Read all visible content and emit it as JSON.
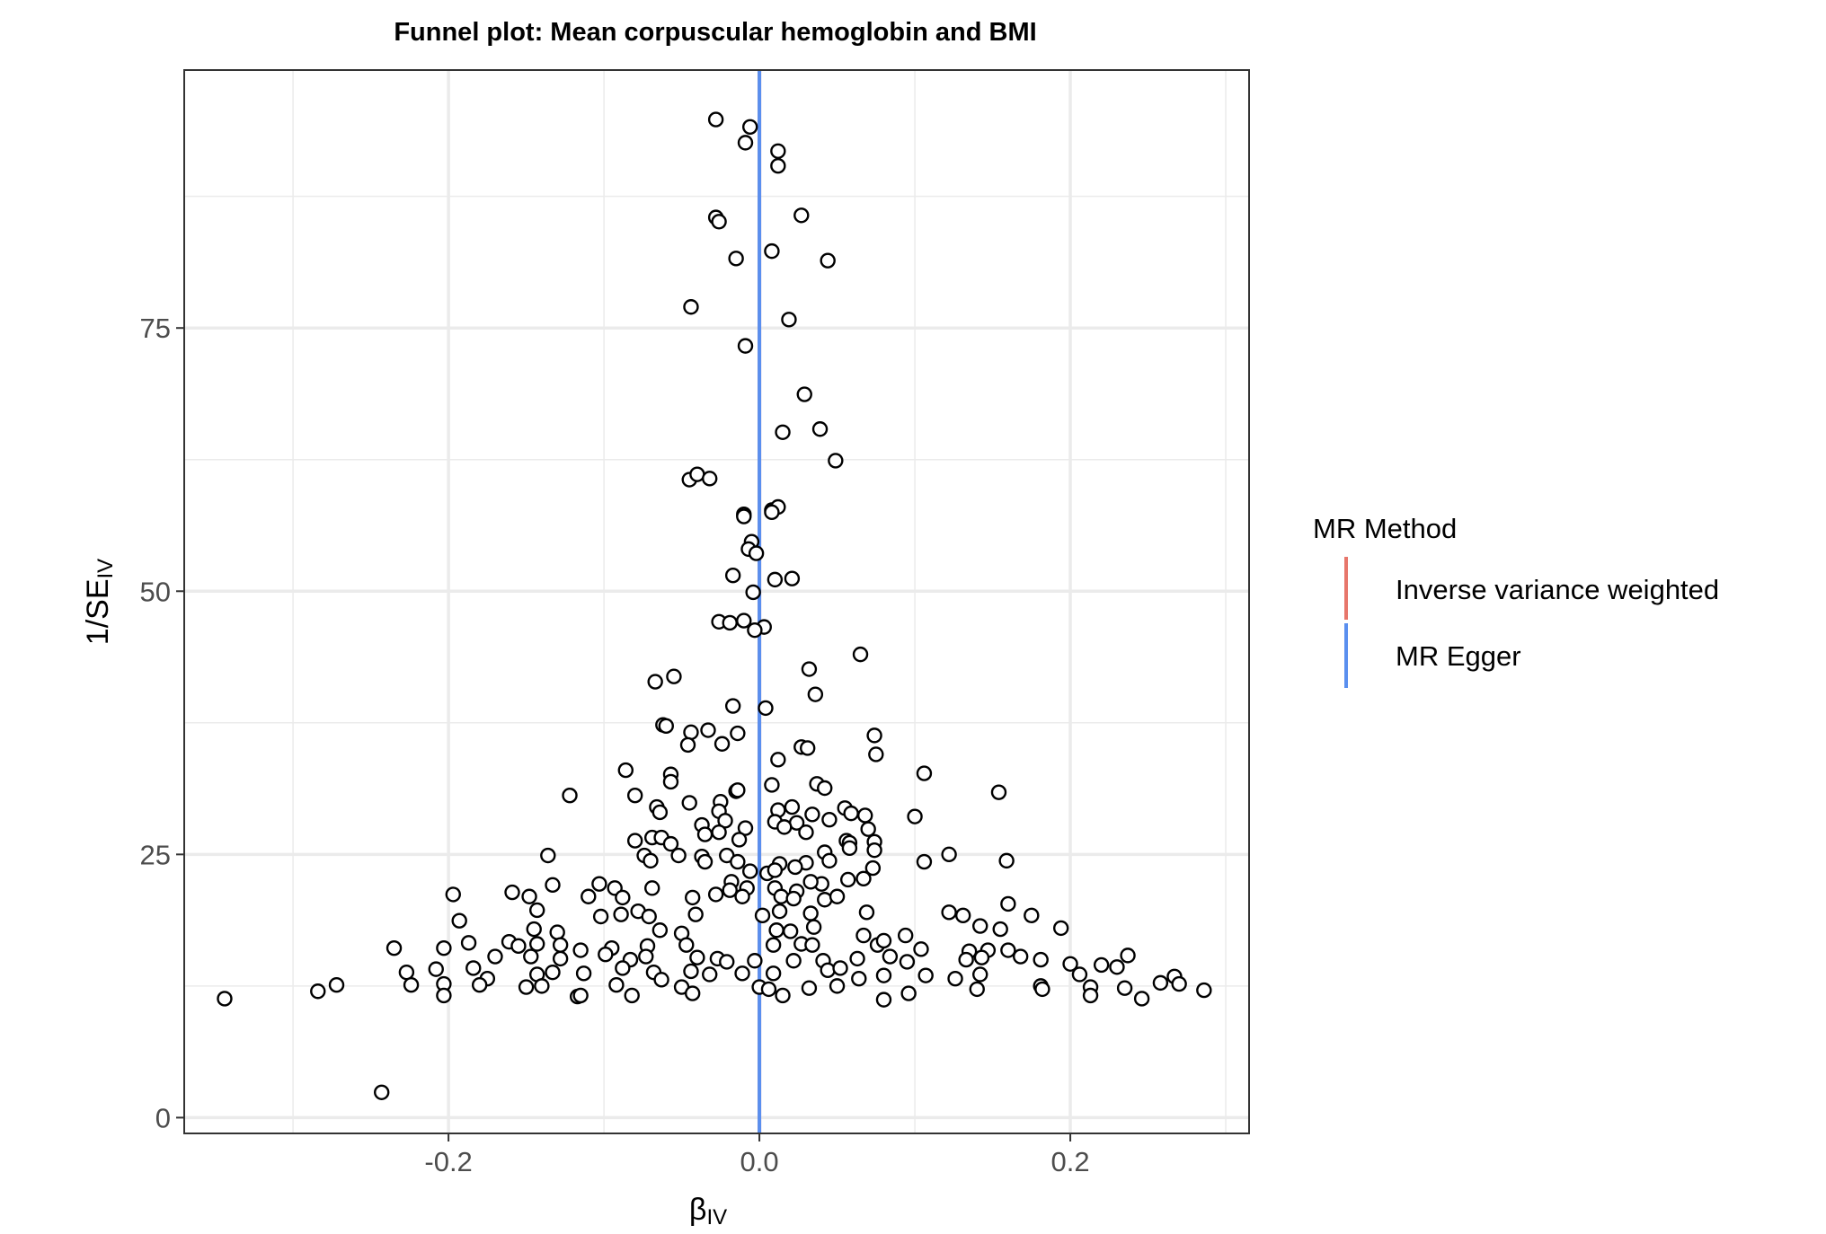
{
  "chart_data": {
    "type": "scatter",
    "title": "Funnel plot: Mean corpuscular hemoglobin and BMI",
    "xlabel": {
      "main": "β",
      "sub": "IV"
    },
    "ylabel": {
      "main": "1/SE",
      "sub": "IV"
    },
    "xlim": [
      -0.37,
      0.315
    ],
    "ylim": [
      -1.5,
      99.5
    ],
    "x_ticks": [
      -0.2,
      0.0,
      0.2
    ],
    "x_tick_labels": [
      "-0.2",
      "0.0",
      "0.2"
    ],
    "y_ticks": [
      0,
      25,
      50,
      75
    ],
    "y_tick_labels": [
      "0",
      "25",
      "50",
      "75"
    ],
    "grid": true,
    "legend_position": "right",
    "legend": {
      "title": "MR Method",
      "entries": [
        {
          "label": "Inverse variance weighted",
          "color": "#e7766b"
        },
        {
          "label": "MR Egger",
          "color": "#5a8fef"
        }
      ]
    },
    "lines": [
      {
        "method": "Inverse variance weighted",
        "x": 0.0,
        "color": "#e7766b"
      },
      {
        "method": "MR Egger",
        "x": 0.0,
        "color": "#5a8fef"
      }
    ],
    "points": [
      [
        -0.028,
        94.8
      ],
      [
        -0.006,
        94.1
      ],
      [
        -0.009,
        92.6
      ],
      [
        0.012,
        91.8
      ],
      [
        0.012,
        90.4
      ],
      [
        -0.028,
        85.5
      ],
      [
        -0.026,
        85.1
      ],
      [
        0.027,
        85.7
      ],
      [
        -0.015,
        81.6
      ],
      [
        0.008,
        82.3
      ],
      [
        0.044,
        81.4
      ],
      [
        -0.044,
        77.0
      ],
      [
        0.019,
        75.8
      ],
      [
        -0.009,
        73.3
      ],
      [
        0.029,
        68.7
      ],
      [
        0.015,
        65.1
      ],
      [
        0.039,
        65.4
      ],
      [
        0.049,
        62.4
      ],
      [
        -0.045,
        60.6
      ],
      [
        -0.04,
        61.1
      ],
      [
        -0.032,
        60.7
      ],
      [
        -0.01,
        57.3
      ],
      [
        -0.01,
        57.1
      ],
      [
        0.008,
        57.7
      ],
      [
        0.012,
        58.0
      ],
      [
        0.008,
        57.5
      ],
      [
        -0.005,
        54.7
      ],
      [
        -0.007,
        54.0
      ],
      [
        -0.002,
        53.6
      ],
      [
        -0.017,
        51.5
      ],
      [
        0.01,
        51.1
      ],
      [
        0.021,
        51.2
      ],
      [
        -0.004,
        49.9
      ],
      [
        -0.026,
        47.1
      ],
      [
        -0.019,
        47.0
      ],
      [
        -0.01,
        47.2
      ],
      [
        0.003,
        46.6
      ],
      [
        -0.003,
        46.3
      ],
      [
        0.065,
        44.0
      ],
      [
        0.032,
        42.6
      ],
      [
        -0.067,
        41.4
      ],
      [
        -0.055,
        41.9
      ],
      [
        0.036,
        40.2
      ],
      [
        -0.017,
        39.1
      ],
      [
        0.004,
        38.9
      ],
      [
        -0.062,
        37.3
      ],
      [
        -0.06,
        37.2
      ],
      [
        -0.044,
        36.6
      ],
      [
        -0.033,
        36.8
      ],
      [
        -0.014,
        36.5
      ],
      [
        0.074,
        36.3
      ],
      [
        -0.046,
        35.4
      ],
      [
        -0.024,
        35.5
      ],
      [
        0.027,
        35.2
      ],
      [
        0.031,
        35.1
      ],
      [
        0.075,
        34.5
      ],
      [
        0.012,
        34.0
      ],
      [
        -0.086,
        33.0
      ],
      [
        -0.057,
        32.6
      ],
      [
        0.106,
        32.7
      ],
      [
        -0.057,
        31.9
      ],
      [
        0.037,
        31.7
      ],
      [
        0.042,
        31.3
      ],
      [
        -0.015,
        31.0
      ],
      [
        -0.014,
        31.1
      ],
      [
        0.008,
        31.6
      ],
      [
        -0.122,
        30.6
      ],
      [
        0.154,
        30.9
      ],
      [
        -0.08,
        30.6
      ],
      [
        -0.045,
        29.9
      ],
      [
        -0.025,
        30.0
      ],
      [
        0.012,
        29.2
      ],
      [
        0.021,
        29.5
      ],
      [
        0.055,
        29.4
      ],
      [
        -0.066,
        29.5
      ],
      [
        -0.064,
        29.0
      ],
      [
        -0.026,
        29.1
      ],
      [
        0.034,
        28.8
      ],
      [
        0.059,
        28.9
      ],
      [
        0.1,
        28.6
      ],
      [
        0.068,
        28.7
      ],
      [
        -0.037,
        27.8
      ],
      [
        -0.022,
        28.2
      ],
      [
        0.01,
        28.1
      ],
      [
        0.024,
        28.0
      ],
      [
        0.045,
        28.3
      ],
      [
        -0.026,
        27.1
      ],
      [
        -0.009,
        27.5
      ],
      [
        0.016,
        27.6
      ],
      [
        0.07,
        27.4
      ],
      [
        -0.035,
        26.9
      ],
      [
        0.03,
        27.1
      ],
      [
        -0.08,
        26.3
      ],
      [
        -0.069,
        26.6
      ],
      [
        -0.063,
        26.6
      ],
      [
        -0.057,
        26.0
      ],
      [
        -0.013,
        26.4
      ],
      [
        0.056,
        26.3
      ],
      [
        0.058,
        26.1
      ],
      [
        0.074,
        26.2
      ],
      [
        -0.052,
        24.9
      ],
      [
        -0.037,
        24.8
      ],
      [
        -0.021,
        24.9
      ],
      [
        0.042,
        25.2
      ],
      [
        0.058,
        25.6
      ],
      [
        0.074,
        25.4
      ],
      [
        0.122,
        25.0
      ],
      [
        -0.136,
        24.9
      ],
      [
        -0.074,
        24.9
      ],
      [
        -0.07,
        24.4
      ],
      [
        -0.035,
        24.3
      ],
      [
        -0.014,
        24.3
      ],
      [
        0.013,
        24.1
      ],
      [
        0.03,
        24.2
      ],
      [
        0.045,
        24.4
      ],
      [
        0.106,
        24.3
      ],
      [
        0.159,
        24.4
      ],
      [
        0.073,
        23.7
      ],
      [
        -0.006,
        23.4
      ],
      [
        0.005,
        23.2
      ],
      [
        0.01,
        23.5
      ],
      [
        0.023,
        23.8
      ],
      [
        -0.018,
        22.4
      ],
      [
        0.04,
        22.2
      ],
      [
        0.057,
        22.6
      ],
      [
        0.067,
        22.7
      ],
      [
        0.033,
        22.4
      ],
      [
        -0.133,
        22.1
      ],
      [
        -0.103,
        22.2
      ],
      [
        -0.093,
        21.8
      ],
      [
        -0.069,
        21.8
      ],
      [
        -0.019,
        21.6
      ],
      [
        -0.008,
        21.8
      ],
      [
        0.01,
        21.8
      ],
      [
        0.024,
        21.5
      ],
      [
        -0.197,
        21.2
      ],
      [
        -0.159,
        21.4
      ],
      [
        -0.148,
        21.0
      ],
      [
        -0.11,
        21.0
      ],
      [
        -0.088,
        20.9
      ],
      [
        -0.043,
        20.9
      ],
      [
        -0.028,
        21.2
      ],
      [
        -0.011,
        21.0
      ],
      [
        0.014,
        21.0
      ],
      [
        0.022,
        20.8
      ],
      [
        0.042,
        20.7
      ],
      [
        0.05,
        21.0
      ],
      [
        0.16,
        20.3
      ],
      [
        0.131,
        19.2
      ],
      [
        0.175,
        19.2
      ],
      [
        -0.143,
        19.7
      ],
      [
        -0.102,
        19.1
      ],
      [
        -0.089,
        19.3
      ],
      [
        -0.078,
        19.6
      ],
      [
        -0.071,
        19.1
      ],
      [
        -0.041,
        19.3
      ],
      [
        0.002,
        19.2
      ],
      [
        0.013,
        19.6
      ],
      [
        0.033,
        19.4
      ],
      [
        0.069,
        19.5
      ],
      [
        0.122,
        19.5
      ],
      [
        -0.193,
        18.7
      ],
      [
        -0.145,
        17.9
      ],
      [
        -0.13,
        17.6
      ],
      [
        -0.064,
        17.8
      ],
      [
        -0.05,
        17.5
      ],
      [
        0.011,
        17.8
      ],
      [
        0.02,
        17.7
      ],
      [
        0.035,
        18.1
      ],
      [
        0.067,
        17.3
      ],
      [
        0.094,
        17.3
      ],
      [
        0.142,
        18.2
      ],
      [
        0.155,
        17.9
      ],
      [
        0.194,
        18.0
      ],
      [
        -0.187,
        16.6
      ],
      [
        -0.161,
        16.7
      ],
      [
        -0.155,
        16.3
      ],
      [
        -0.143,
        16.5
      ],
      [
        -0.128,
        16.4
      ],
      [
        -0.115,
        15.9
      ],
      [
        -0.095,
        16.1
      ],
      [
        -0.072,
        16.3
      ],
      [
        -0.047,
        16.4
      ],
      [
        0.009,
        16.4
      ],
      [
        0.027,
        16.5
      ],
      [
        0.034,
        16.4
      ],
      [
        0.076,
        16.4
      ],
      [
        0.08,
        16.8
      ],
      [
        0.104,
        16.0
      ],
      [
        0.135,
        15.8
      ],
      [
        0.147,
        15.9
      ],
      [
        0.16,
        15.9
      ],
      [
        -0.235,
        16.1
      ],
      [
        -0.203,
        16.1
      ],
      [
        -0.17,
        15.3
      ],
      [
        -0.147,
        15.3
      ],
      [
        -0.128,
        15.1
      ],
      [
        -0.099,
        15.5
      ],
      [
        -0.083,
        15.0
      ],
      [
        -0.073,
        15.3
      ],
      [
        -0.04,
        15.2
      ],
      [
        -0.027,
        15.1
      ],
      [
        -0.021,
        14.8
      ],
      [
        -0.003,
        14.9
      ],
      [
        0.022,
        14.9
      ],
      [
        0.041,
        14.9
      ],
      [
        0.063,
        15.1
      ],
      [
        0.084,
        15.3
      ],
      [
        0.095,
        14.8
      ],
      [
        0.133,
        15.0
      ],
      [
        0.143,
        15.2
      ],
      [
        0.168,
        15.3
      ],
      [
        0.181,
        15.0
      ],
      [
        0.2,
        14.6
      ],
      [
        0.22,
        14.5
      ],
      [
        0.23,
        14.3
      ],
      [
        0.237,
        15.4
      ],
      [
        -0.208,
        14.1
      ],
      [
        -0.184,
        14.2
      ],
      [
        -0.175,
        13.2
      ],
      [
        -0.143,
        13.6
      ],
      [
        -0.133,
        13.8
      ],
      [
        -0.113,
        13.7
      ],
      [
        -0.088,
        14.2
      ],
      [
        -0.068,
        13.8
      ],
      [
        -0.044,
        13.9
      ],
      [
        -0.032,
        13.6
      ],
      [
        -0.011,
        13.7
      ],
      [
        0.009,
        13.7
      ],
      [
        0.044,
        14.0
      ],
      [
        0.052,
        14.2
      ],
      [
        0.08,
        13.5
      ],
      [
        0.107,
        13.5
      ],
      [
        0.126,
        13.2
      ],
      [
        0.142,
        13.6
      ],
      [
        0.206,
        13.6
      ],
      [
        0.267,
        13.4
      ],
      [
        -0.227,
        13.8
      ],
      [
        -0.224,
        12.6
      ],
      [
        -0.203,
        12.7
      ],
      [
        -0.18,
        12.6
      ],
      [
        -0.15,
        12.4
      ],
      [
        -0.14,
        12.5
      ],
      [
        -0.117,
        11.5
      ],
      [
        -0.092,
        12.6
      ],
      [
        -0.082,
        11.6
      ],
      [
        -0.063,
        13.1
      ],
      [
        -0.05,
        12.4
      ],
      [
        -0.043,
        11.8
      ],
      [
        0.0,
        12.4
      ],
      [
        0.006,
        12.2
      ],
      [
        0.015,
        11.6
      ],
      [
        0.032,
        12.3
      ],
      [
        0.05,
        12.5
      ],
      [
        0.064,
        13.2
      ],
      [
        0.096,
        11.8
      ],
      [
        0.14,
        12.2
      ],
      [
        0.181,
        12.5
      ],
      [
        0.213,
        12.4
      ],
      [
        0.235,
        12.3
      ],
      [
        0.258,
        12.8
      ],
      [
        0.27,
        12.7
      ],
      [
        0.286,
        12.1
      ],
      [
        -0.344,
        11.3
      ],
      [
        -0.284,
        12.0
      ],
      [
        -0.272,
        12.6
      ],
      [
        -0.203,
        11.6
      ],
      [
        -0.115,
        11.6
      ],
      [
        0.08,
        11.2
      ],
      [
        0.182,
        12.2
      ],
      [
        0.213,
        11.6
      ],
      [
        0.246,
        11.3
      ],
      [
        -0.243,
        2.4
      ]
    ]
  }
}
